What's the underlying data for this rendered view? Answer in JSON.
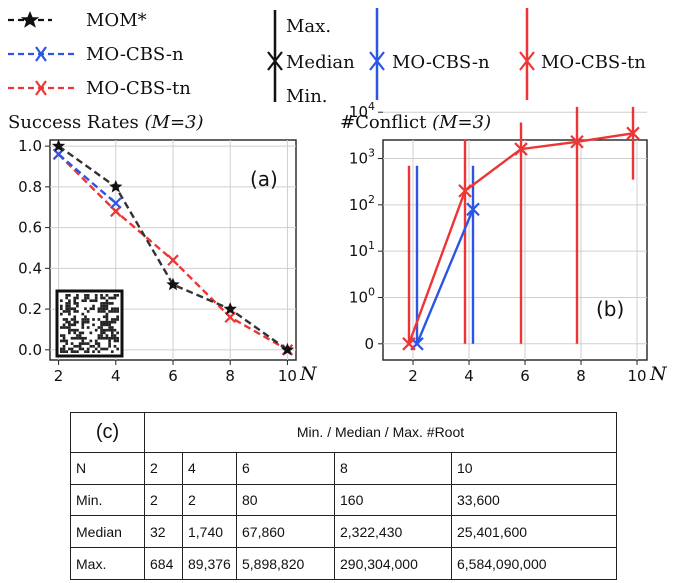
{
  "legend": {
    "series": [
      {
        "label": "MOM*",
        "color": "#111111",
        "marker": "star"
      },
      {
        "label": "MO-CBS-n",
        "color": "#2b55e6",
        "marker": "x"
      },
      {
        "label": "MO-CBS-tn",
        "color": "#ee3535",
        "marker": "x"
      }
    ],
    "range_max": "Max.",
    "range_median": "Median",
    "range_min": "Min.",
    "range_series": [
      {
        "label": "MO-CBS-n",
        "color": "#2b55e6"
      },
      {
        "label": "MO-CBS-tn",
        "color": "#ee3535"
      }
    ]
  },
  "chart_data": [
    {
      "type": "line",
      "panel": "(a)",
      "title_main": "Success Rates ",
      "title_param": "(M=3)",
      "xlabel": "N",
      "x": [
        2,
        4,
        6,
        8,
        10
      ],
      "xlim": [
        1.7,
        10.3
      ],
      "ylim": [
        -0.05,
        1.03
      ],
      "yticks": [
        0.0,
        0.2,
        0.4,
        0.6,
        0.8,
        1.0
      ],
      "yticklabels": [
        "0.0",
        "0.2",
        "0.4",
        "0.6",
        "0.8",
        "1.0"
      ],
      "grid": true,
      "inset": "grid map thumbnail",
      "series": [
        {
          "name": "MOM*",
          "color": "#333333",
          "values": [
            1.0,
            0.8,
            0.32,
            0.2,
            0.0
          ]
        },
        {
          "name": "MO-CBS-n",
          "color": "#2b55e6",
          "x": [
            2,
            4
          ],
          "values": [
            0.96,
            0.72
          ]
        },
        {
          "name": "MO-CBS-tn",
          "color": "#ee3535",
          "values": [
            0.96,
            0.68,
            0.44,
            0.16,
            0.0
          ]
        }
      ]
    },
    {
      "type": "line",
      "panel": "(b)",
      "title_main": "#Conflict ",
      "title_param": "(M=3)",
      "xlabel": "N",
      "x": [
        2,
        4,
        6,
        8,
        10
      ],
      "yscale": "symlog",
      "ylim": [
        -0.35,
        4.4
      ],
      "yticks": [
        0,
        1,
        10,
        100,
        1000,
        10000
      ],
      "yticklabels_base": [
        "0",
        "10",
        "10",
        "10",
        "10",
        "10"
      ],
      "yticklabels_exp": [
        "",
        "0",
        "1",
        "2",
        "3",
        "4"
      ],
      "grid": true,
      "series": [
        {
          "name": "MO-CBS-n",
          "color": "#2b55e6",
          "x": [
            2,
            4
          ],
          "median": [
            0,
            80
          ],
          "min": [
            0,
            0
          ],
          "max": [
            700,
            700
          ]
        },
        {
          "name": "MO-CBS-tn",
          "color": "#ee3535",
          "x": [
            2,
            4,
            6,
            8,
            10
          ],
          "median": [
            0,
            200,
            1600,
            2300,
            3500
          ],
          "min": [
            0,
            0,
            0,
            0,
            350
          ],
          "max": [
            700,
            2600,
            6000,
            13000,
            13000
          ]
        }
      ]
    },
    {
      "type": "table",
      "panel": "(c)",
      "header": "Min. / Median / Max. #Root",
      "rows": [
        [
          "N",
          "2",
          "4",
          "6",
          "8",
          "10"
        ],
        [
          "Min.",
          "2",
          "2",
          "80",
          "160",
          "33,600"
        ],
        [
          "Median",
          "32",
          "1,740",
          "67,860",
          "2,322,430",
          "25,401,600"
        ],
        [
          "Max.",
          "684",
          "89,376",
          "5,898,820",
          "290,304,000",
          "6,584,090,000"
        ]
      ]
    }
  ]
}
